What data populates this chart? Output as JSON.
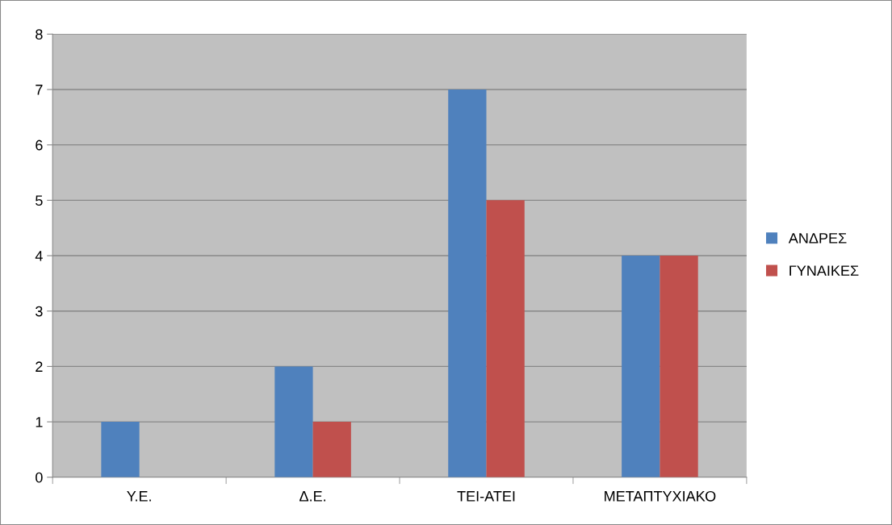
{
  "chart_data": {
    "type": "bar",
    "categories": [
      "Υ.Ε.",
      "Δ.Ε.",
      "ΤΕΙ-ΑΤΕΙ",
      "ΜΕΤΑΠΤΥΧΙΑΚΟ"
    ],
    "series": [
      {
        "name": "ΑΝΔΡΕΣ",
        "color": "#4f81bd",
        "values": [
          1,
          2,
          7,
          4
        ]
      },
      {
        "name": "ΓΥΝΑΙΚΕΣ",
        "color": "#c0504d",
        "values": [
          0,
          1,
          5,
          4
        ]
      }
    ],
    "ylim": [
      0,
      8
    ],
    "yticks": [
      0,
      1,
      2,
      3,
      4,
      5,
      6,
      7,
      8
    ],
    "grid": "y",
    "legend": "right"
  }
}
